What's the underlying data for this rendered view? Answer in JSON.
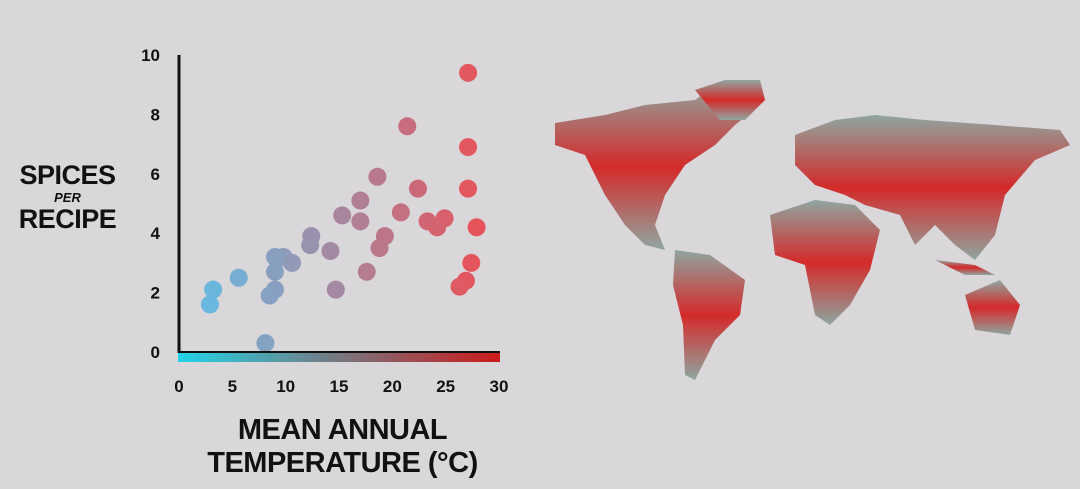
{
  "chart_data": {
    "type": "scatter",
    "title": "",
    "ylabel": {
      "top": "SPICES",
      "middle": "PER",
      "bottom": "RECIPE"
    },
    "xlabel": {
      "line1": "MEAN ANNUAL",
      "line2": "TEMPERATURE (°C)"
    },
    "xlim": [
      0,
      30
    ],
    "ylim": [
      0,
      10
    ],
    "xticks": [
      "0",
      "5",
      "10",
      "15",
      "20",
      "25",
      "30"
    ],
    "yticks": [
      "0",
      "2",
      "4",
      "6",
      "8",
      "10"
    ],
    "grid": false,
    "color_scale": {
      "low": "#5bc3ee",
      "high": "#f24b50",
      "axis_low": "#22d4e6",
      "axis_high": "#cc1a1a"
    },
    "points": [
      [
        27.1,
        9.4
      ],
      [
        21.4,
        7.6
      ],
      [
        27.1,
        6.9
      ],
      [
        18.6,
        5.9
      ],
      [
        22.4,
        5.5
      ],
      [
        27.1,
        5.5
      ],
      [
        17.0,
        5.1
      ],
      [
        15.3,
        4.6
      ],
      [
        17.0,
        4.4
      ],
      [
        20.8,
        4.7
      ],
      [
        23.3,
        4.4
      ],
      [
        24.9,
        4.5
      ],
      [
        24.2,
        4.2
      ],
      [
        27.9,
        4.2
      ],
      [
        19.3,
        3.9
      ],
      [
        18.8,
        3.5
      ],
      [
        12.4,
        3.9
      ],
      [
        12.3,
        3.6
      ],
      [
        14.2,
        3.4
      ],
      [
        9.8,
        3.2
      ],
      [
        9.0,
        3.2
      ],
      [
        10.6,
        3.0
      ],
      [
        9.0,
        2.7
      ],
      [
        17.6,
        2.7
      ],
      [
        27.4,
        3.0
      ],
      [
        5.6,
        2.5
      ],
      [
        3.2,
        2.1
      ],
      [
        9.0,
        2.1
      ],
      [
        8.5,
        1.9
      ],
      [
        14.7,
        2.1
      ],
      [
        26.9,
        2.4
      ],
      [
        26.3,
        2.2
      ],
      [
        2.9,
        1.6
      ],
      [
        8.1,
        0.3
      ]
    ]
  },
  "map": {
    "colors": {
      "top": "#8fa6a0",
      "middle": "#d42a2a",
      "bottom": "#8fa6a0"
    }
  }
}
